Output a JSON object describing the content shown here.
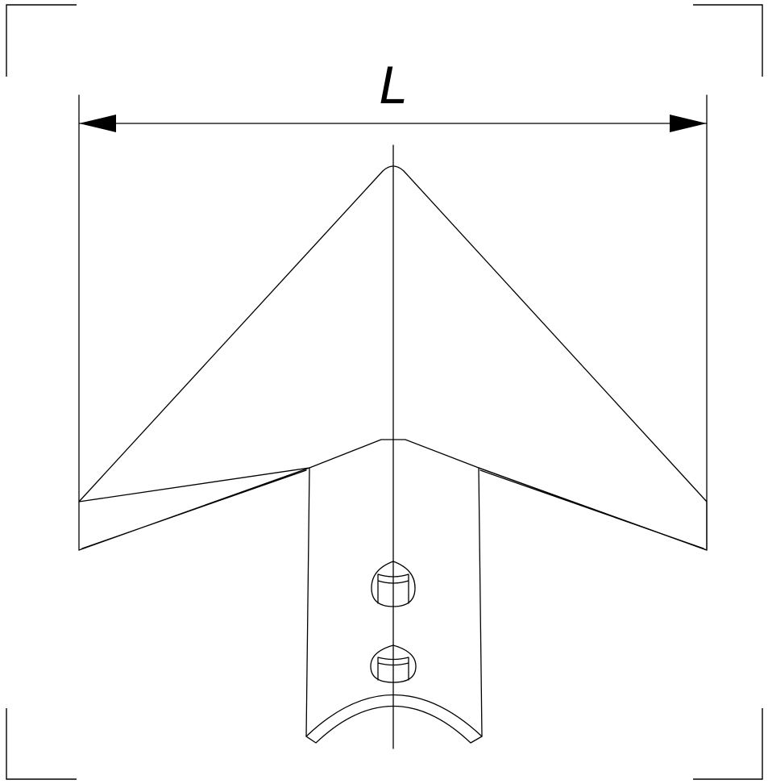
{
  "dimension": {
    "label": "L"
  }
}
